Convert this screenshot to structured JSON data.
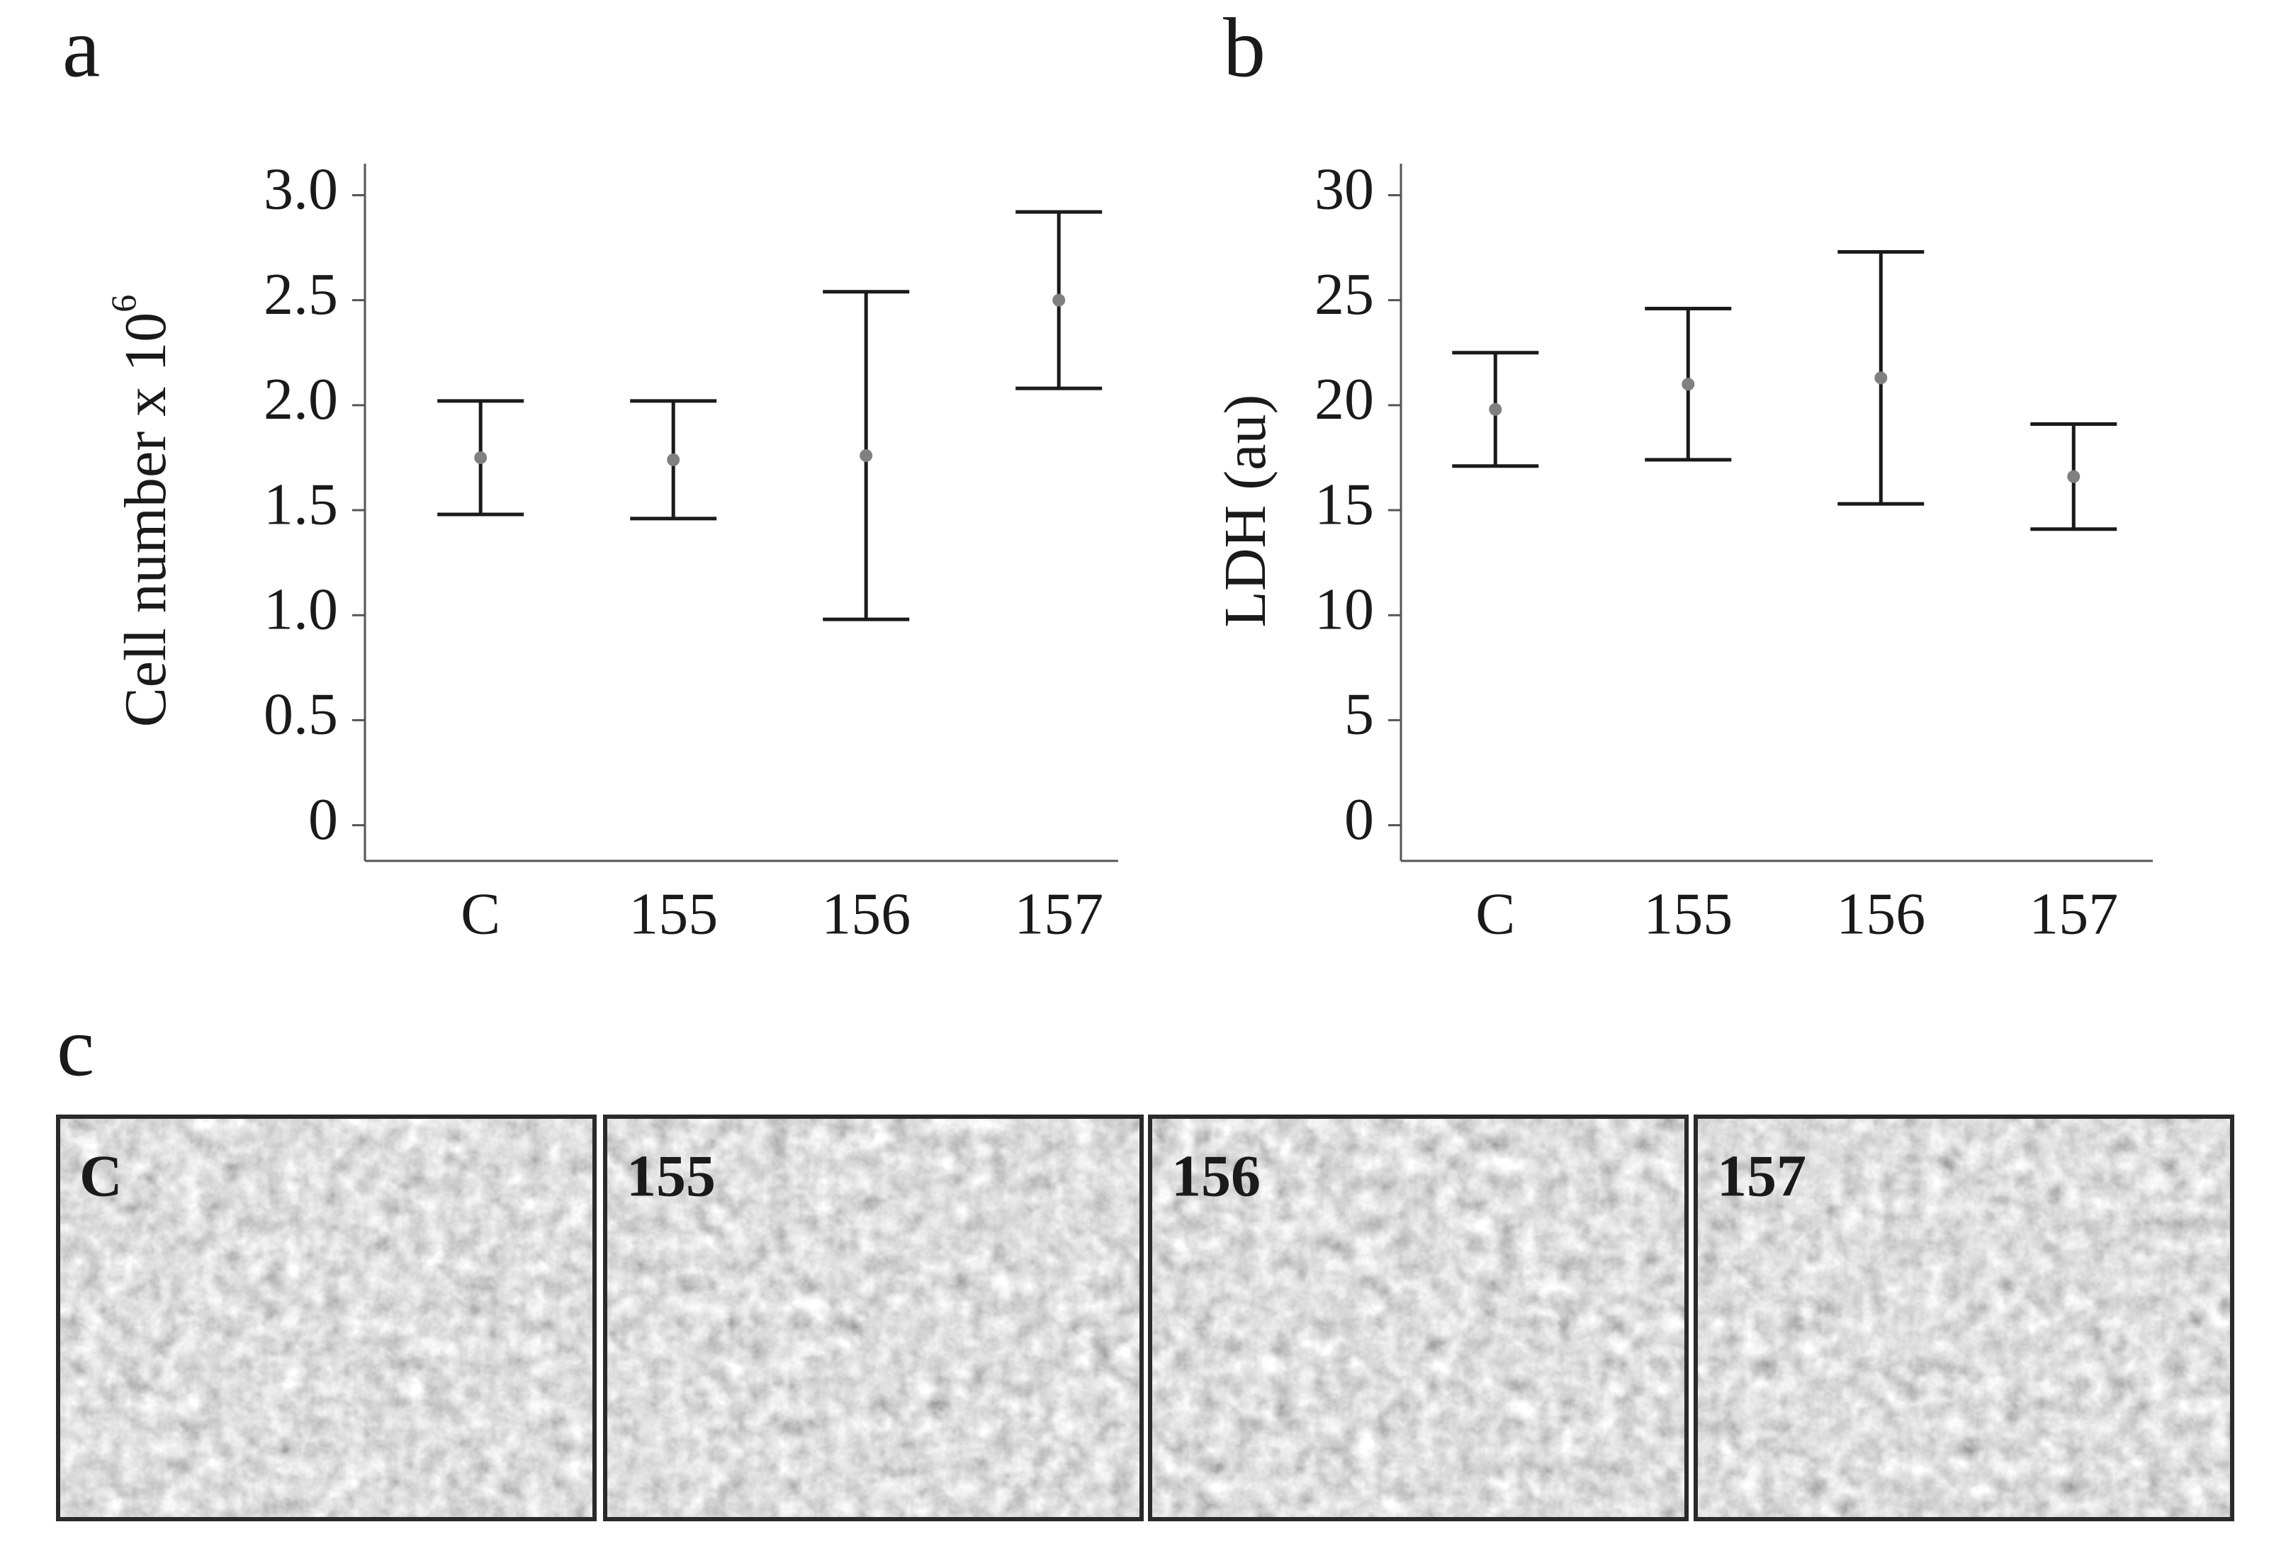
{
  "chart_data": [
    {
      "type": "errorbar",
      "panel_label": "a",
      "ylabel": {
        "text": "Cell number x 10",
        "superscript": "6"
      },
      "categories": [
        "C",
        "155",
        "156",
        "157"
      ],
      "values": [
        1.75,
        1.74,
        1.76,
        2.5
      ],
      "errors": [
        0.27,
        0.28,
        0.78,
        0.42
      ],
      "point_color": "#808080",
      "errorbar_color": "#1a1a1a",
      "ylim": [
        -0.17,
        3.15
      ],
      "yticks": [
        0,
        0.5,
        {
          "value": 1,
          "label": "1.0"
        },
        1.5,
        {
          "value": 2,
          "label": "2.0"
        },
        2.5,
        {
          "value": 3,
          "label": "3.0"
        }
      ]
    },
    {
      "type": "errorbar",
      "panel_label": "b",
      "ylabel": {
        "text": "LDH (au)"
      },
      "categories": [
        "C",
        "155",
        "156",
        "157"
      ],
      "values": [
        19.8,
        21.0,
        21.3,
        16.6
      ],
      "errors": [
        2.7,
        3.6,
        6.0,
        2.5
      ],
      "point_color": "#808080",
      "errorbar_color": "#1a1a1a",
      "ylim": [
        -1.7,
        31.5
      ],
      "yticks": [
        0,
        5,
        10,
        15,
        20,
        25,
        30
      ]
    }
  ],
  "panel_c": {
    "label": "c",
    "images": [
      {
        "label": "C"
      },
      {
        "label": "155"
      },
      {
        "label": "156"
      },
      {
        "label": "157"
      }
    ]
  }
}
